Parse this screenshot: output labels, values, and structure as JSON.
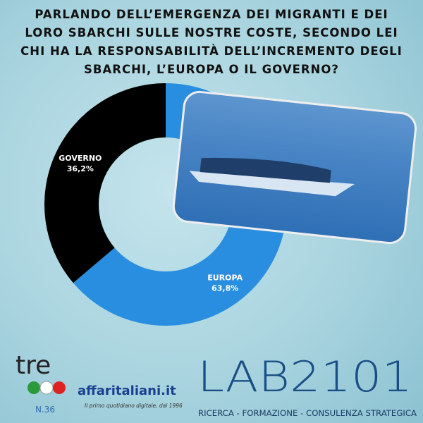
{
  "chart_data": {
    "type": "donut",
    "title": "PARLANDO DELL’EMERGENZA DEI MIGRANTI E DEI LORO SBARCHI SULLE NOSTRE COSTE, SECONDO LEI CHI HA LA RESPONSABILITÀ DELL’INCREMENTO DEGLI SBARCHI, L’EUROPA O IL GOVERNO?",
    "categories": [
      "EUROPA",
      "GOVERNO"
    ],
    "values": [
      63.8,
      36.2
    ],
    "value_labels": [
      "63,8%",
      "36,2%"
    ],
    "colors": [
      "#2a8ee0",
      "#000000"
    ]
  },
  "footer": {
    "badge": "tre",
    "issue": "N.36",
    "publisher": "affaritaliani.it",
    "publisher_tagline": "Il primo quotidiano digitale, dal 1996",
    "lab": "LAB2101",
    "lab_tagline": "RICERCA - FORMAZIONE - CONSULENZA STRATEGICA"
  }
}
